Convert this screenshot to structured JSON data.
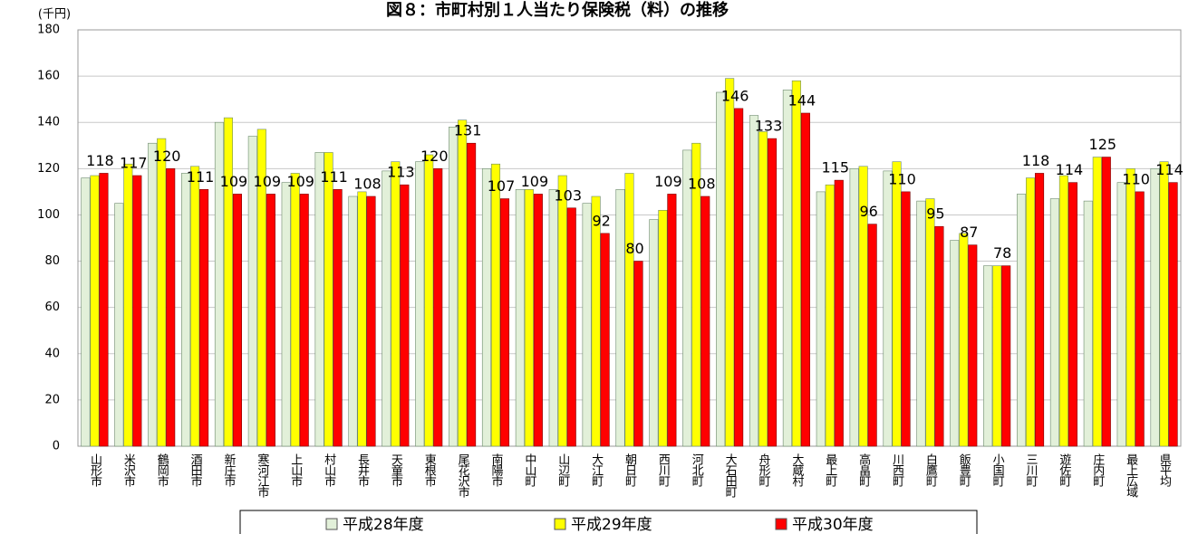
{
  "chart_data": {
    "type": "bar",
    "title": "図８：市町村別１人当たり保険税（料）の推移",
    "y_unit": "(千円)",
    "categories": [
      "山形市",
      "米沢市",
      "鶴岡市",
      "酒田市",
      "新庄市",
      "寒河江市",
      "上山市",
      "村山市",
      "長井市",
      "天童市",
      "東根市",
      "尾花沢市",
      "南陽市",
      "中山町",
      "山辺町",
      "大江町",
      "朝日町",
      "西川町",
      "河北町",
      "大石田町",
      "舟形町",
      "大蔵村",
      "最上町",
      "高畠町",
      "川西町",
      "白鷹町",
      "飯豊町",
      "小国町",
      "三川町",
      "遊佐町",
      "庄内町",
      "最上広域",
      "県平均"
    ],
    "series": [
      {
        "name": "平成28年度",
        "color": "#e2f0d9",
        "values": [
          116,
          105,
          131,
          118,
          140,
          134,
          114,
          127,
          108,
          119,
          123,
          138,
          120,
          111,
          111,
          105,
          111,
          98,
          128,
          153,
          143,
          154,
          110,
          120,
          119,
          106,
          89,
          78,
          109,
          107,
          106,
          114,
          120
        ]
      },
      {
        "name": "平成29年度",
        "color": "#ffff00",
        "values": [
          117,
          122,
          133,
          121,
          142,
          137,
          118,
          127,
          110,
          123,
          126,
          141,
          122,
          111,
          117,
          108,
          118,
          102,
          131,
          159,
          136,
          158,
          113,
          121,
          123,
          107,
          92,
          78,
          116,
          117,
          125,
          120,
          123
        ]
      },
      {
        "name": "平成30年度",
        "color": "#ff0000",
        "values": [
          118,
          117,
          120,
          111,
          109,
          109,
          109,
          111,
          108,
          113,
          120,
          131,
          107,
          109,
          103,
          92,
          80,
          109,
          108,
          146,
          133,
          144,
          115,
          96,
          110,
          95,
          87,
          78,
          118,
          114,
          125,
          110,
          114
        ],
        "data_labels": true
      }
    ],
    "ylim": [
      0,
      180
    ],
    "yticks": [
      0,
      20,
      40,
      60,
      80,
      100,
      120,
      140,
      160,
      180
    ],
    "grid": true
  }
}
